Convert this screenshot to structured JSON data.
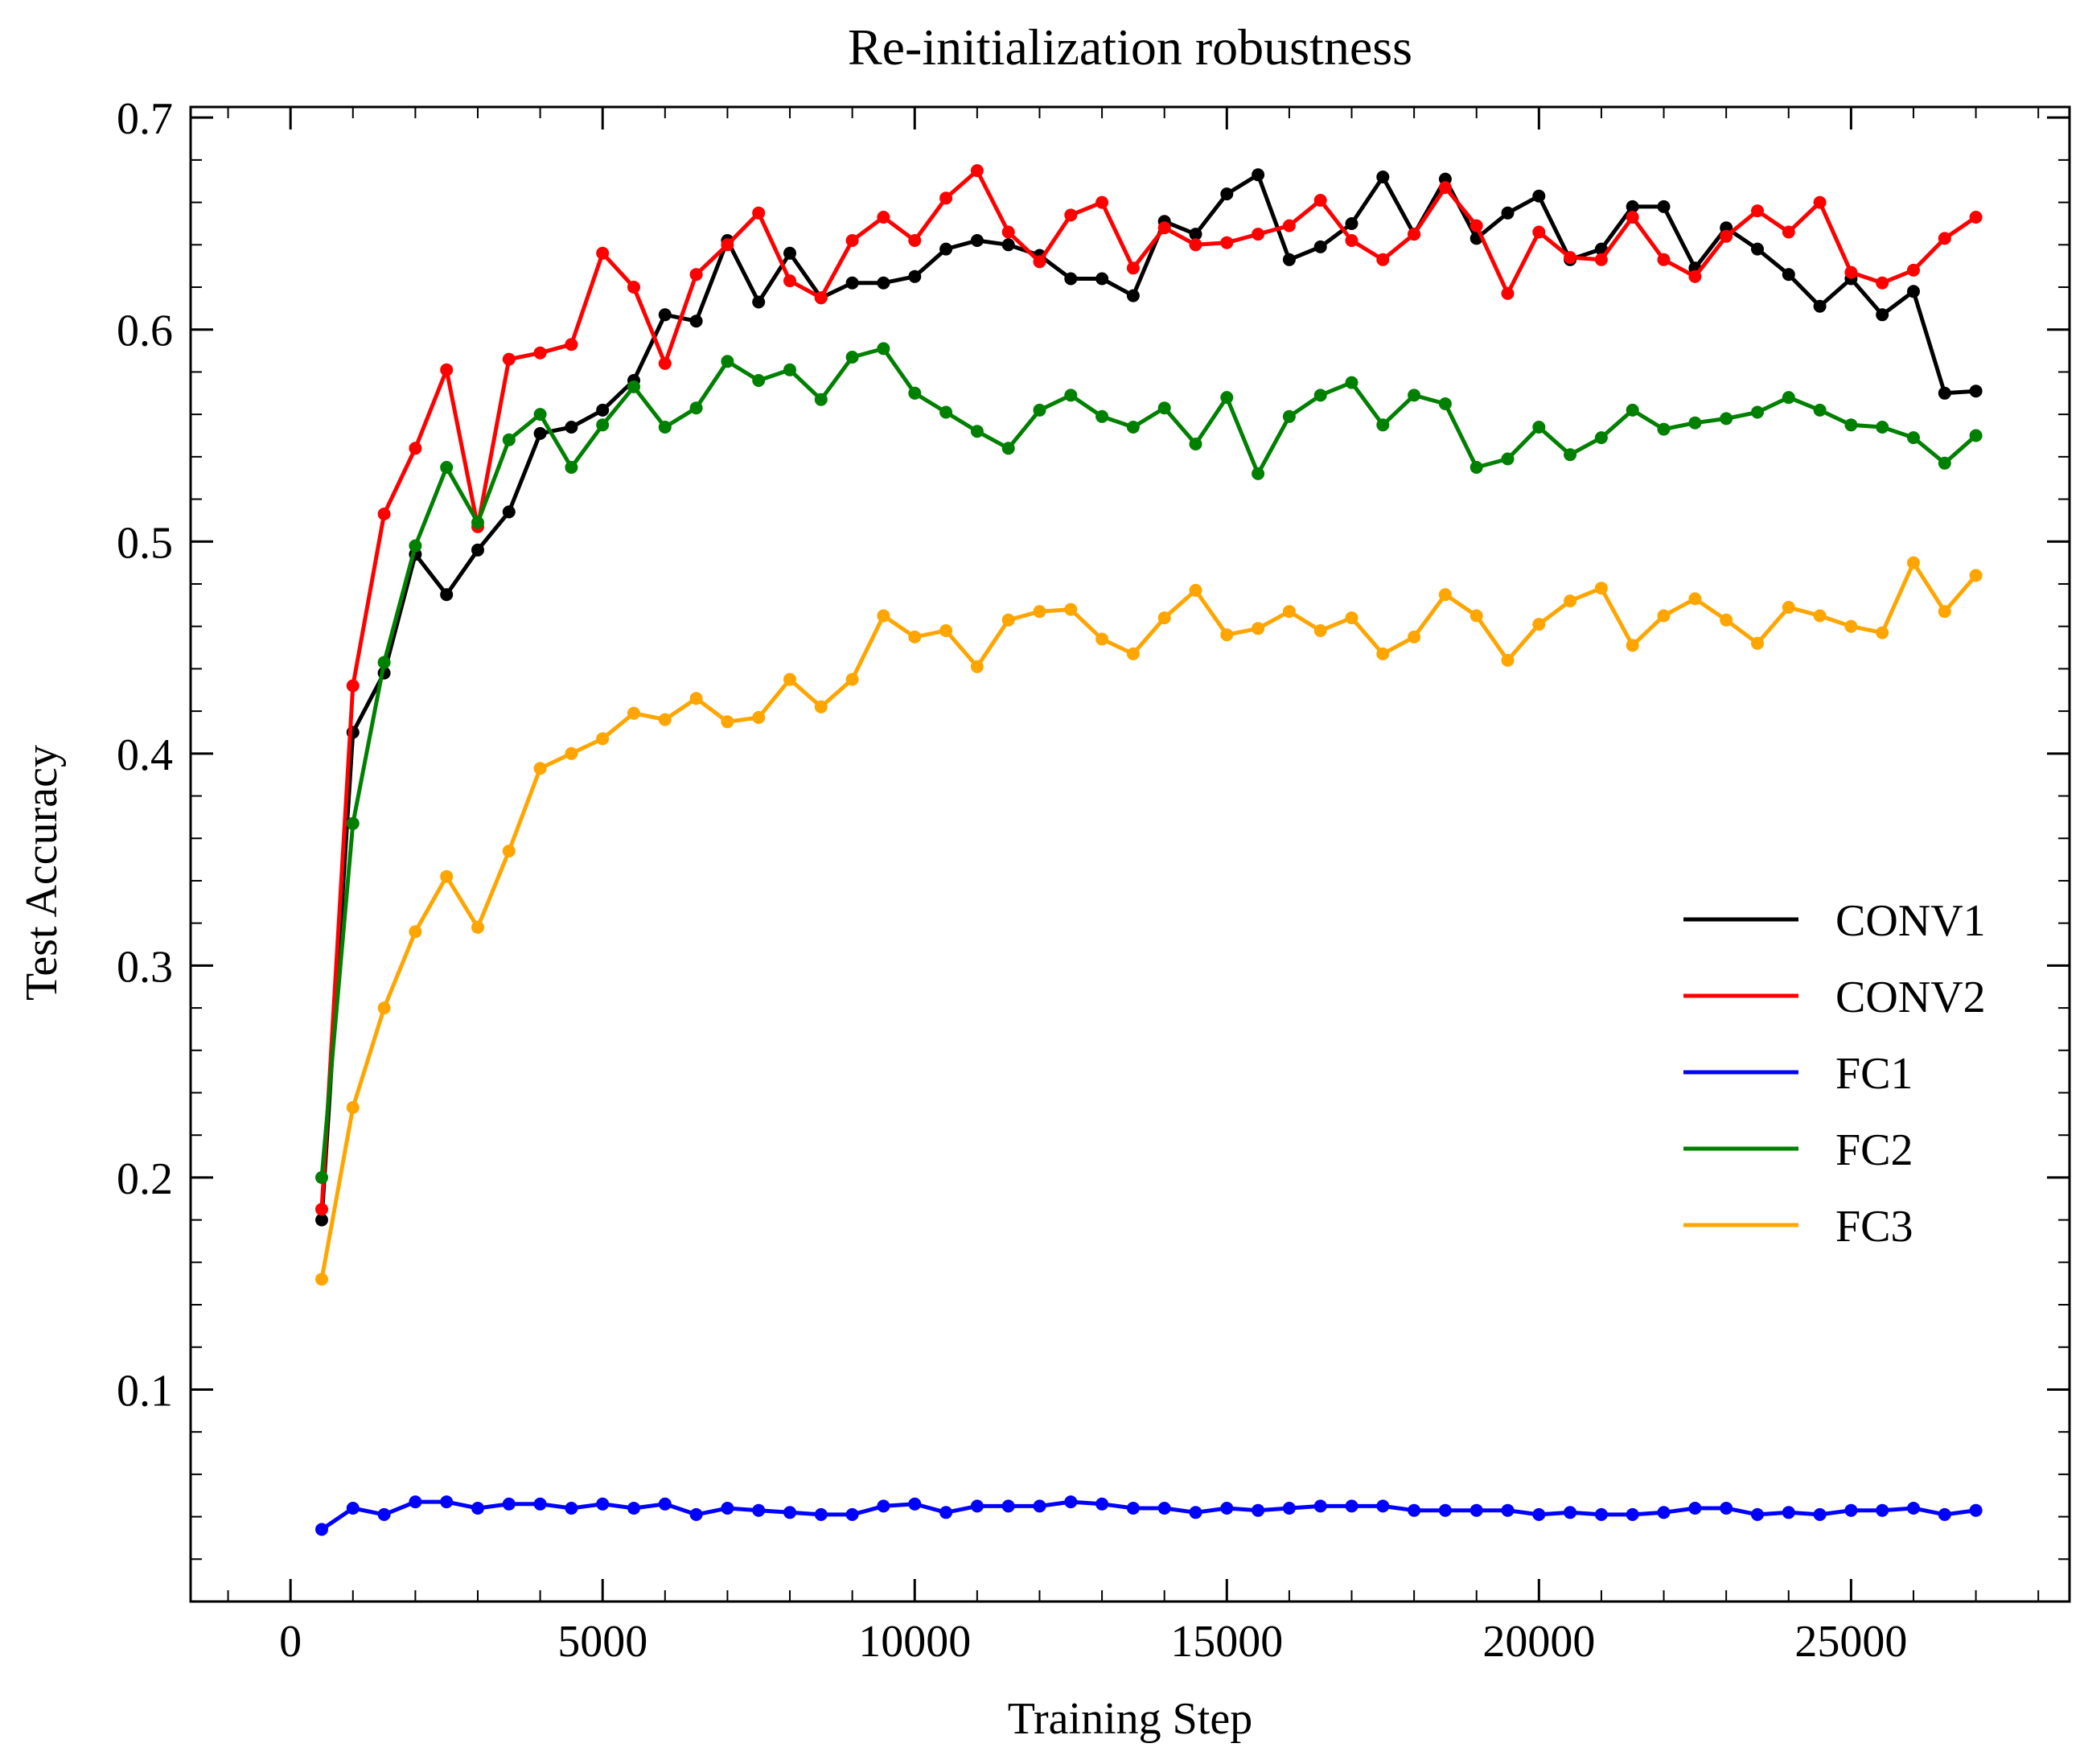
{
  "chart_data": {
    "type": "line",
    "title": "Re-initialization robustness",
    "xlabel": "Training Step",
    "ylabel": "Test Accuracy",
    "xlim": [
      -1600,
      28500
    ],
    "ylim": [
      0.0,
      0.705
    ],
    "xticks": [
      0,
      5000,
      10000,
      15000,
      20000,
      25000
    ],
    "xtick_labels": [
      "0",
      "5000",
      "10000",
      "15000",
      "20000",
      "25000"
    ],
    "yticks": [
      0.1,
      0.2,
      0.3,
      0.4,
      0.5,
      0.6,
      0.7
    ],
    "ytick_labels": [
      "0.1",
      "0.2",
      "0.3",
      "0.4",
      "0.5",
      "0.6",
      "0.7"
    ],
    "legend_position": "center-right",
    "grid": false,
    "x": [
      500,
      1000,
      1500,
      2000,
      2500,
      3000,
      3500,
      4000,
      4500,
      5000,
      5500,
      6000,
      6500,
      7000,
      7500,
      8000,
      8500,
      9000,
      9500,
      10000,
      10500,
      11000,
      11500,
      12000,
      12500,
      13000,
      13500,
      14000,
      14500,
      15000,
      15500,
      16000,
      16500,
      17000,
      17500,
      18000,
      18500,
      19000,
      19500,
      20000,
      20500,
      21000,
      21500,
      22000,
      22500,
      23000,
      23500,
      24000,
      24500,
      25000,
      25500,
      26000,
      26500,
      27000
    ],
    "series": [
      {
        "name": "CONV1",
        "color": "#000000",
        "values": [
          0.18,
          0.41,
          0.438,
          0.494,
          0.475,
          0.496,
          0.514,
          0.551,
          0.554,
          0.562,
          0.576,
          0.607,
          0.604,
          0.642,
          0.613,
          0.636,
          0.615,
          0.622,
          0.622,
          0.625,
          0.638,
          0.642,
          0.64,
          0.635,
          0.624,
          0.624,
          0.616,
          0.651,
          0.645,
          0.664,
          0.673,
          0.633,
          0.639,
          0.65,
          0.672,
          0.645,
          0.671,
          0.643,
          0.655,
          0.663,
          0.633,
          0.638,
          0.658,
          0.658,
          0.629,
          0.648,
          0.638,
          0.626,
          0.611,
          0.624,
          0.607,
          0.618,
          0.57,
          0.571
        ]
      },
      {
        "name": "CONV2",
        "color": "#ff0000",
        "values": [
          0.185,
          0.432,
          0.513,
          0.544,
          0.581,
          0.507,
          0.586,
          0.589,
          0.593,
          0.636,
          0.62,
          0.584,
          0.626,
          0.64,
          0.655,
          0.623,
          0.615,
          0.642,
          0.653,
          0.642,
          0.662,
          0.675,
          0.646,
          0.632,
          0.654,
          0.66,
          0.629,
          0.648,
          0.64,
          0.641,
          0.645,
          0.649,
          0.661,
          0.642,
          0.633,
          0.645,
          0.667,
          0.649,
          0.617,
          0.646,
          0.634,
          0.633,
          0.653,
          0.633,
          0.625,
          0.644,
          0.656,
          0.646,
          0.66,
          0.627,
          0.622,
          0.628,
          0.643,
          0.653
        ]
      },
      {
        "name": "FC1",
        "color": "#0000ff",
        "values": [
          0.034,
          0.044,
          0.041,
          0.047,
          0.047,
          0.044,
          0.046,
          0.046,
          0.044,
          0.046,
          0.044,
          0.046,
          0.041,
          0.044,
          0.043,
          0.042,
          0.041,
          0.041,
          0.045,
          0.046,
          0.042,
          0.045,
          0.045,
          0.045,
          0.047,
          0.046,
          0.044,
          0.044,
          0.042,
          0.044,
          0.043,
          0.044,
          0.045,
          0.045,
          0.045,
          0.043,
          0.043,
          0.043,
          0.043,
          0.041,
          0.042,
          0.041,
          0.041,
          0.042,
          0.044,
          0.044,
          0.041,
          0.042,
          0.041,
          0.043,
          0.043,
          0.044,
          0.041,
          0.043
        ]
      },
      {
        "name": "FC2",
        "color": "#008000",
        "values": [
          0.2,
          0.367,
          0.443,
          0.498,
          0.535,
          0.509,
          0.548,
          0.56,
          0.535,
          0.555,
          0.573,
          0.554,
          0.563,
          0.585,
          0.576,
          0.581,
          0.567,
          0.587,
          0.591,
          0.57,
          0.561,
          0.552,
          0.544,
          0.562,
          0.569,
          0.559,
          0.554,
          0.563,
          0.546,
          0.568,
          0.532,
          0.559,
          0.569,
          0.575,
          0.555,
          0.569,
          0.565,
          0.535,
          0.539,
          0.554,
          0.541,
          0.549,
          0.562,
          0.553,
          0.556,
          0.558,
          0.561,
          0.568,
          0.562,
          0.555,
          0.554,
          0.549,
          0.537,
          0.55
        ]
      },
      {
        "name": "FC3",
        "color": "#ffa500",
        "values": [
          0.152,
          0.233,
          0.28,
          0.316,
          0.342,
          0.318,
          0.354,
          0.393,
          0.4,
          0.407,
          0.419,
          0.416,
          0.426,
          0.415,
          0.417,
          0.435,
          0.422,
          0.435,
          0.465,
          0.455,
          0.458,
          0.441,
          0.463,
          0.467,
          0.468,
          0.454,
          0.447,
          0.464,
          0.477,
          0.456,
          0.459,
          0.467,
          0.458,
          0.464,
          0.447,
          0.455,
          0.475,
          0.465,
          0.444,
          0.461,
          0.472,
          0.478,
          0.451,
          0.465,
          0.473,
          0.463,
          0.452,
          0.469,
          0.465,
          0.46,
          0.457,
          0.49,
          0.467,
          0.484
        ]
      }
    ]
  }
}
